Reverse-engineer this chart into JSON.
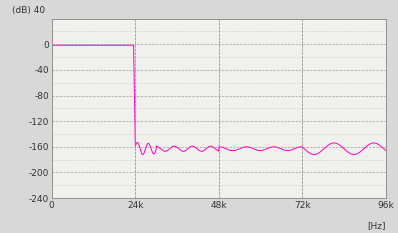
{
  "xlabel": "[Hz]",
  "ylabel": "(dB)",
  "xlim": [
    0,
    96000
  ],
  "ylim": [
    -240,
    40
  ],
  "yticks": [
    0,
    -40,
    -80,
    -120,
    -160,
    -200,
    -240
  ],
  "ytick_top": 40,
  "xticks": [
    0,
    24000,
    48000,
    72000,
    96000
  ],
  "xticklabels": [
    "0",
    "24k",
    "48k",
    "72k",
    "96k"
  ],
  "line_color": "#ff00bb",
  "background_color": "#d8d8d8",
  "plot_bg_color": "#f0f0ec",
  "grid_color": "#999999",
  "grid_minor_color": "#bbbbbb",
  "cutoff_freq": 23800,
  "passband_level": -1.5,
  "stopband_level": -163
}
